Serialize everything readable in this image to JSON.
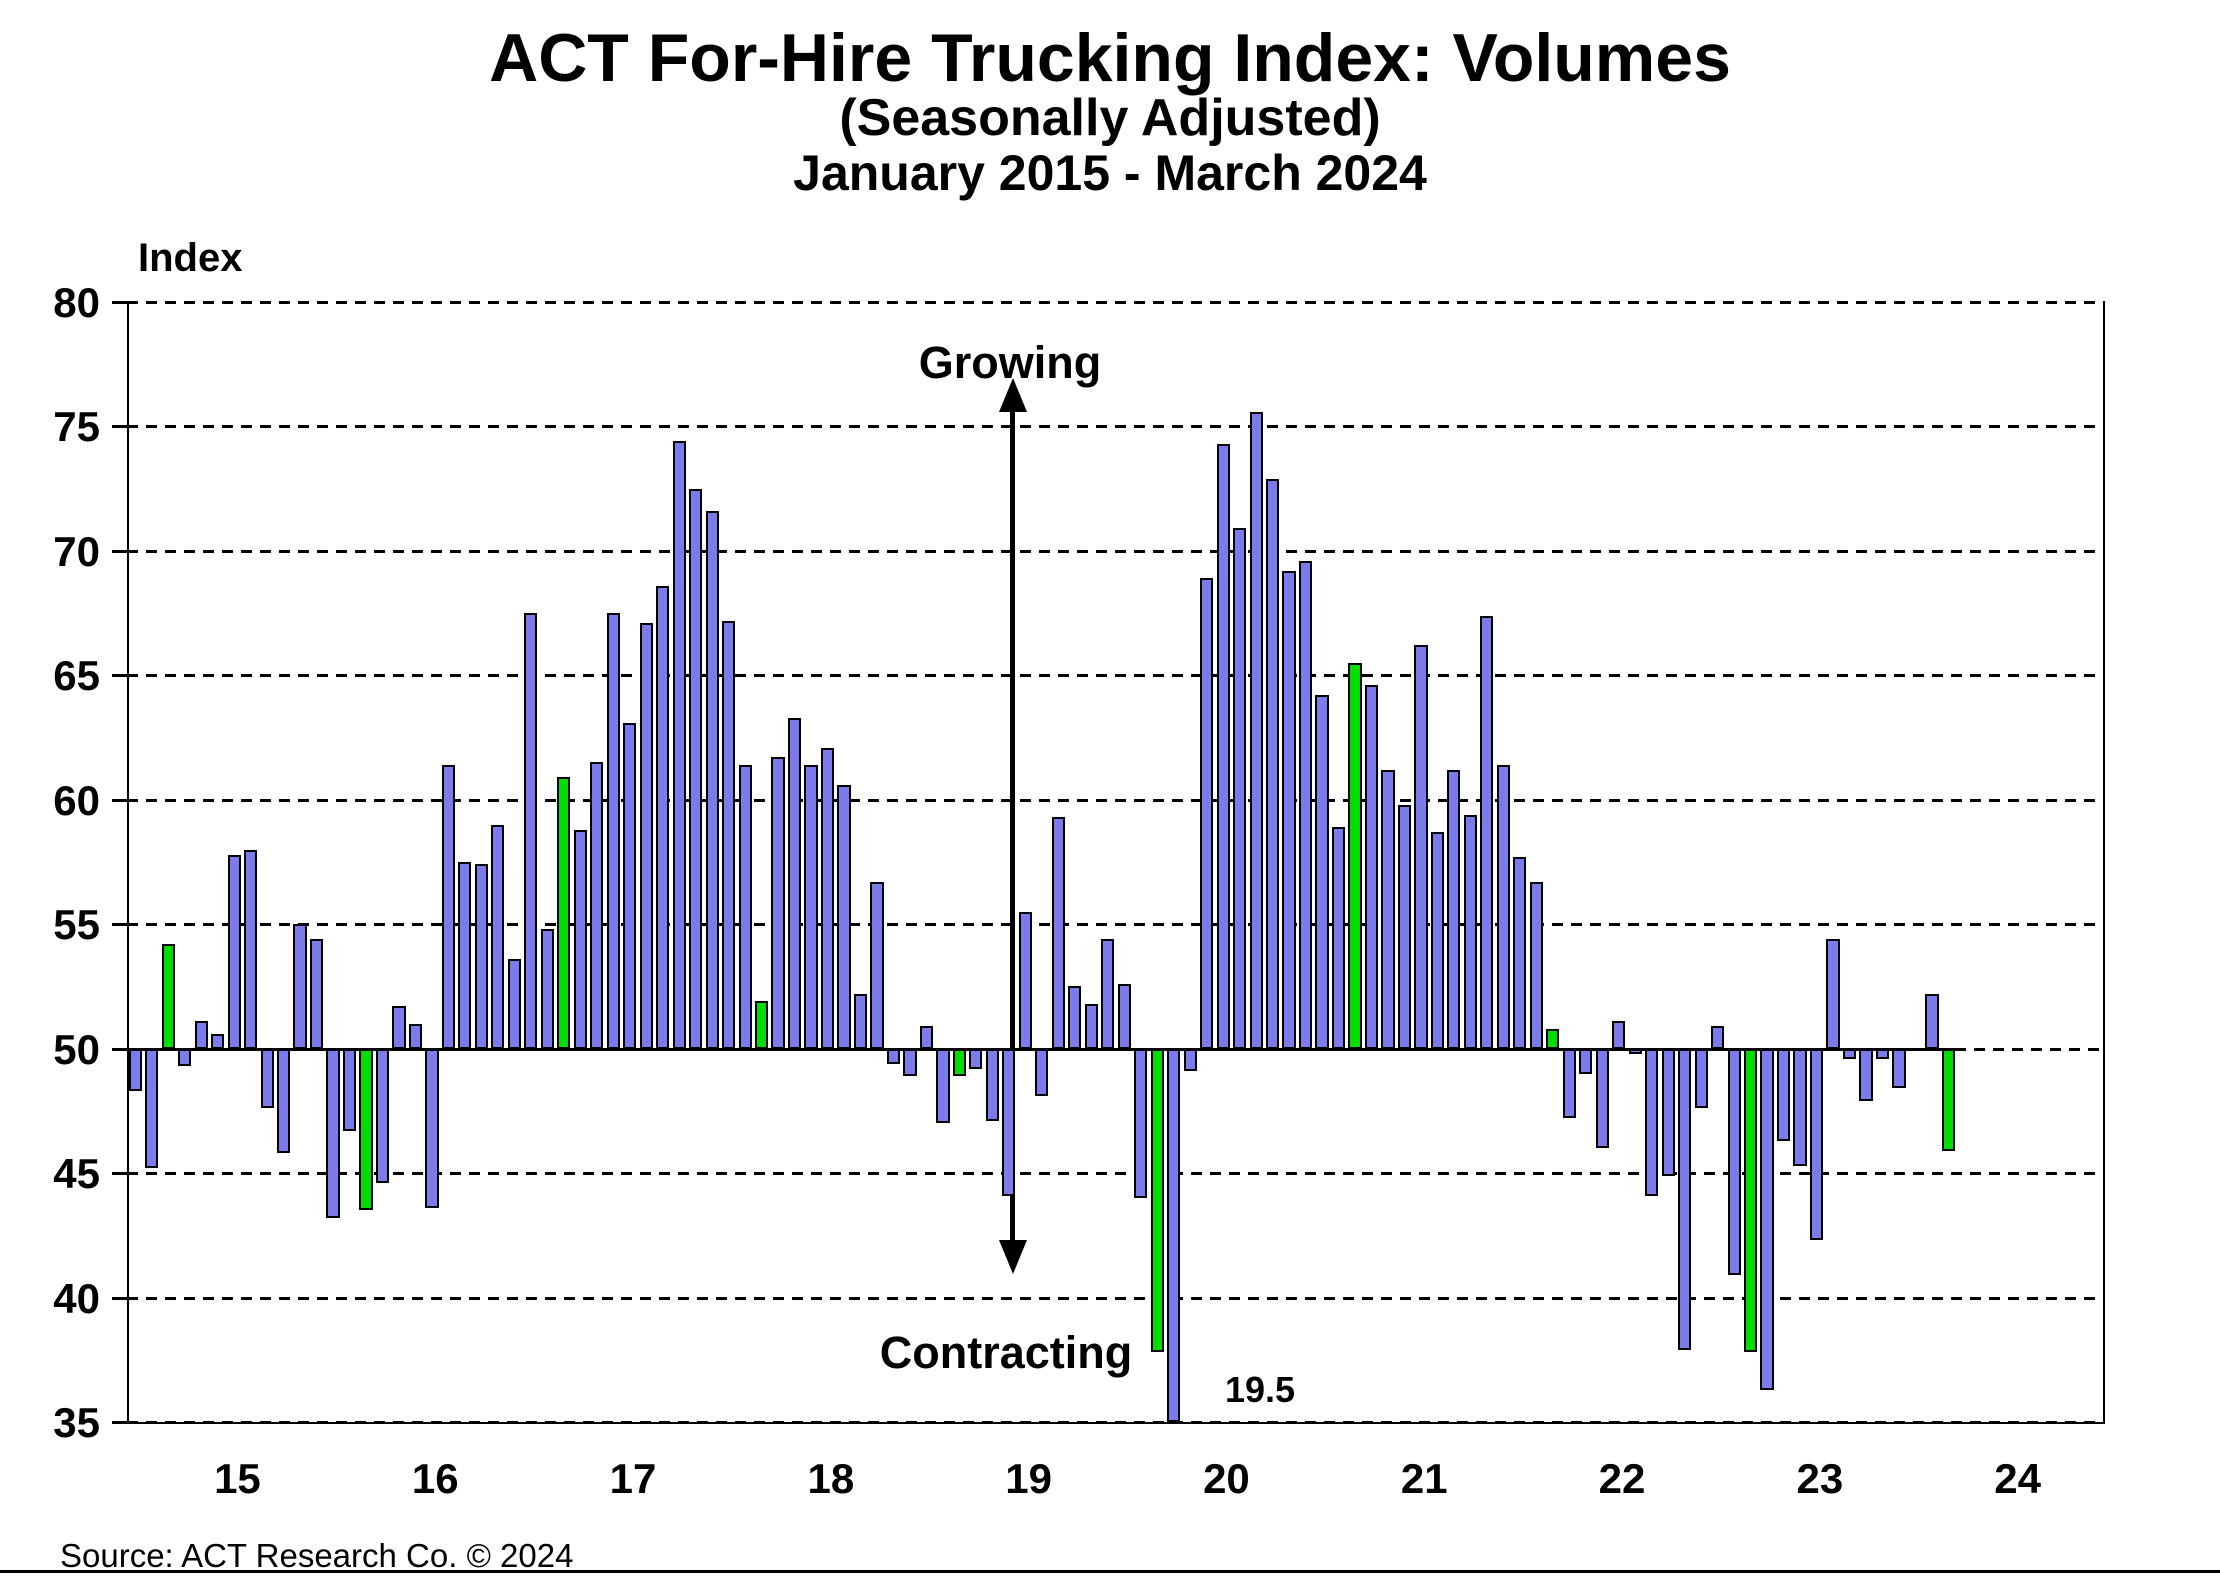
{
  "header": {
    "title": "ACT For-Hire Trucking Index: Volumes",
    "subtitle": "(Seasonally Adjusted)",
    "date_range": "January 2015 - March 2024"
  },
  "axis_title": "Index",
  "source": "Source: ACT Research Co. © 2024",
  "annotations": {
    "growing": "Growing",
    "contracting": "Contracting",
    "low_value_label": "19.5"
  },
  "colors": {
    "bar_fill": "#7b7bec",
    "highlight_fill": "#00dd00",
    "bar_outline": "#000000",
    "text": "#000000",
    "background": "#ffffff"
  },
  "chart_data": {
    "type": "bar",
    "title": "ACT For-Hire Trucking Index: Volumes (Seasonally Adjusted), January 2015 - March 2024",
    "xlabel": "",
    "ylabel": "Index",
    "ylim": [
      35,
      80
    ],
    "baseline_value": 50,
    "yticks": [
      80,
      75,
      70,
      65,
      60,
      55,
      50,
      45,
      40,
      35
    ],
    "grid": "dashed horizontal at every 5 units",
    "legend_position": "none",
    "xtick_labels": [
      "15",
      "16",
      "17",
      "18",
      "19",
      "20",
      "21",
      "22",
      "23",
      "24"
    ],
    "x_axis_total_month_slots": 120,
    "months": [
      "2015-01",
      "2015-02",
      "2015-03",
      "2015-04",
      "2015-05",
      "2015-06",
      "2015-07",
      "2015-08",
      "2015-09",
      "2015-10",
      "2015-11",
      "2015-12",
      "2016-01",
      "2016-02",
      "2016-03",
      "2016-04",
      "2016-05",
      "2016-06",
      "2016-07",
      "2016-08",
      "2016-09",
      "2016-10",
      "2016-11",
      "2016-12",
      "2017-01",
      "2017-02",
      "2017-03",
      "2017-04",
      "2017-05",
      "2017-06",
      "2017-07",
      "2017-08",
      "2017-09",
      "2017-10",
      "2017-11",
      "2017-12",
      "2018-01",
      "2018-02",
      "2018-03",
      "2018-04",
      "2018-05",
      "2018-06",
      "2018-07",
      "2018-08",
      "2018-09",
      "2018-10",
      "2018-11",
      "2018-12",
      "2019-01",
      "2019-02",
      "2019-03",
      "2019-04",
      "2019-05",
      "2019-06",
      "2019-07",
      "2019-08",
      "2019-09",
      "2019-10",
      "2019-11",
      "2019-12",
      "2020-01",
      "2020-02",
      "2020-03",
      "2020-04",
      "2020-05",
      "2020-06",
      "2020-07",
      "2020-08",
      "2020-09",
      "2020-10",
      "2020-11",
      "2020-12",
      "2021-01",
      "2021-02",
      "2021-03",
      "2021-04",
      "2021-05",
      "2021-06",
      "2021-07",
      "2021-08",
      "2021-09",
      "2021-10",
      "2021-11",
      "2021-12",
      "2022-01",
      "2022-02",
      "2022-03",
      "2022-04",
      "2022-05",
      "2022-06",
      "2022-07",
      "2022-08",
      "2022-09",
      "2022-10",
      "2022-11",
      "2022-12",
      "2023-01",
      "2023-02",
      "2023-03",
      "2023-04",
      "2023-05",
      "2023-06",
      "2023-07",
      "2023-08",
      "2023-09",
      "2023-10",
      "2023-11",
      "2023-12",
      "2024-01",
      "2024-02",
      "2024-03"
    ],
    "values": [
      48.3,
      45.2,
      54.2,
      49.3,
      51.1,
      50.6,
      57.8,
      58.0,
      47.6,
      45.8,
      55.0,
      54.4,
      43.2,
      46.7,
      43.5,
      44.6,
      51.7,
      51.0,
      43.6,
      61.4,
      57.5,
      57.4,
      59.0,
      53.6,
      67.5,
      54.8,
      60.9,
      58.8,
      61.5,
      67.5,
      63.1,
      67.1,
      68.6,
      74.4,
      72.5,
      71.6,
      67.2,
      61.4,
      51.9,
      61.7,
      63.3,
      61.4,
      62.1,
      60.6,
      52.2,
      56.7,
      49.4,
      48.9,
      50.9,
      47.0,
      48.9,
      49.2,
      47.1,
      44.1,
      55.5,
      48.1,
      59.3,
      52.5,
      51.8,
      54.4,
      52.6,
      44.0,
      37.8,
      19.5,
      49.1,
      68.9,
      74.3,
      70.9,
      75.6,
      72.9,
      69.2,
      69.6,
      64.2,
      58.9,
      65.5,
      64.6,
      61.2,
      59.8,
      66.2,
      58.7,
      61.2,
      59.4,
      67.4,
      61.4,
      57.7,
      56.7,
      50.8,
      47.2,
      49.0,
      46.0,
      51.1,
      49.8,
      44.1,
      44.9,
      37.9,
      47.6,
      50.9,
      40.9,
      37.8,
      36.3,
      46.3,
      45.3,
      42.3,
      54.4,
      49.6,
      47.9,
      49.6,
      48.4,
      50.0,
      52.2,
      45.9
    ],
    "green_bar_indices": [
      2,
      14,
      26,
      38,
      50,
      62,
      74,
      86,
      98,
      110
    ],
    "annotated_min": {
      "month": "2020-04",
      "value": 19.5,
      "label": "19.5",
      "note": "bar clipped at axis bottom (35)"
    }
  }
}
